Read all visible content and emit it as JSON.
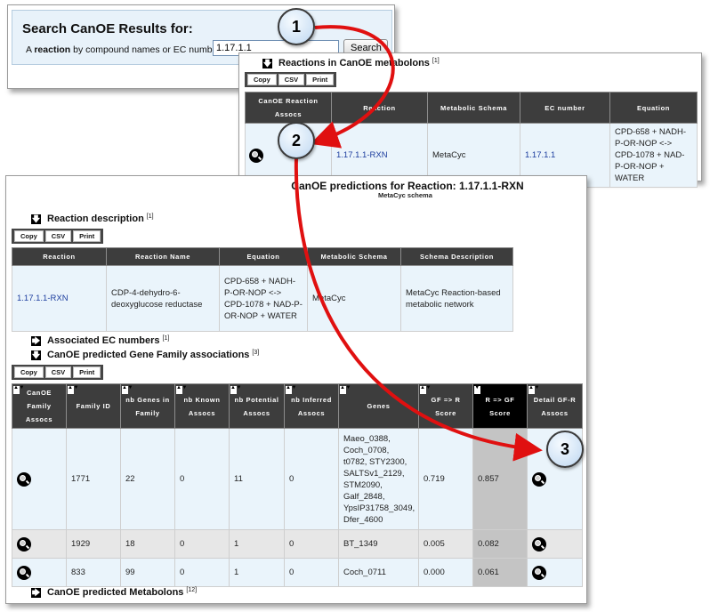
{
  "search": {
    "title": "Search CanOE Results for:",
    "desc_prefix": "A ",
    "desc_bold": "reaction",
    "desc_suffix": " by compound names or EC numbers",
    "input_value": "1.17.1.1",
    "button_label": "Search"
  },
  "reactions_panel": {
    "section_title": "Reactions in CanOE metabolons",
    "section_ref": "[1]",
    "toolbar": [
      "Copy",
      "CSV",
      "Print"
    ],
    "columns": [
      "CanOE Reaction Assocs",
      "Reaction",
      "Metabolic Schema",
      "EC number",
      "Equation"
    ],
    "rows": [
      {
        "reaction": "1.17.1.1-RXN",
        "schema": "MetaCyc",
        "ec": "1.17.1.1",
        "equation": "CPD-658 + NADH-P-OR-NOP <-> CPD-1078 + NAD-P-OR-NOP + WATER"
      }
    ]
  },
  "predictions_panel": {
    "title": "CanOE predictions for Reaction: 1.17.1.1-RXN",
    "subtitle": "MetaCyc schema",
    "reaction_description": {
      "title": "Reaction description",
      "ref": "[1]",
      "toolbar": [
        "Copy",
        "CSV",
        "Print"
      ],
      "columns": [
        "Reaction",
        "Reaction Name",
        "Equation",
        "Metabolic Schema",
        "Schema Description"
      ],
      "row": {
        "reaction": "1.17.1.1-RXN",
        "name": "CDP-4-dehydro-6-deoxyglucose reductase",
        "equation": "CPD-658 + NADH-P-OR-NOP <-> CPD-1078 + NAD-P-OR-NOP + WATER",
        "schema": "MetaCyc",
        "schema_description": "MetaCyc Reaction-based metabolic network"
      }
    },
    "associated_ec": {
      "title": "Associated EC numbers",
      "ref": "[1]"
    },
    "gene_families": {
      "title": "CanOE predicted Gene Family associations",
      "ref": "[3]",
      "toolbar": [
        "Copy",
        "CSV",
        "Print"
      ],
      "columns": [
        "CanOE Family Assocs",
        "Family ID",
        "nb Genes in Family",
        "nb Known Assocs",
        "nb Potential Assocs",
        "nb Inferred Assocs",
        "Genes",
        "GF => R Score",
        "R => GF Score",
        "Detail GF-R Assocs"
      ],
      "rows": [
        {
          "family_id": "1771",
          "nb_genes": "22",
          "known": "0",
          "potential": "11",
          "inferred": "0",
          "genes": "Maeo_0388, Coch_0708, t0782, STY2300, SALTSv1_2129, STM2090, Galf_2848, YpsIP31758_3049, Dfer_4600",
          "gf_r": "0.719",
          "r_gf": "0.857"
        },
        {
          "family_id": "1929",
          "nb_genes": "18",
          "known": "0",
          "potential": "1",
          "inferred": "0",
          "genes": "BT_1349",
          "gf_r": "0.005",
          "r_gf": "0.082"
        },
        {
          "family_id": "833",
          "nb_genes": "99",
          "known": "0",
          "potential": "1",
          "inferred": "0",
          "genes": "Coch_0711",
          "gf_r": "0.000",
          "r_gf": "0.061"
        }
      ]
    },
    "metabolons": {
      "title": "CanOE predicted Metabolons",
      "ref": "[12]"
    }
  },
  "markers": [
    "1",
    "2",
    "3"
  ],
  "colors": {
    "header_bg": "#3d3d3d",
    "row_blue": "#eaf4fb",
    "row_grey": "#e7e7e7",
    "link": "#1c3d9e",
    "arrow": "#e01010",
    "search_bg": "#e8f2fa"
  }
}
